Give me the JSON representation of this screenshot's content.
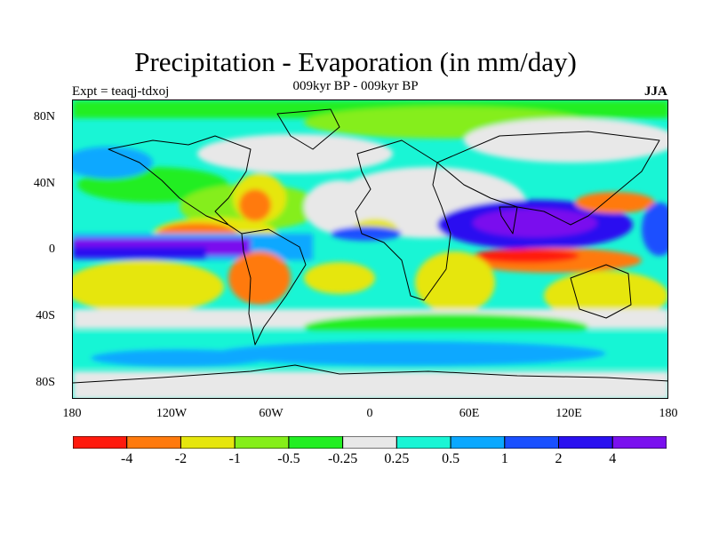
{
  "map": {
    "title": "Precipitation - Evaporation (in mm/day)",
    "subtitle": "009kyr BP - 009kyr BP",
    "experiment": "Expt = teaqj-tdxoj",
    "season": "JJA",
    "lat_ticks": [
      "80N",
      "40N",
      "0",
      "40S",
      "80S"
    ],
    "lon_ticks": [
      "180",
      "120W",
      "60W",
      "0",
      "60E",
      "120E",
      "180"
    ],
    "colorbar": {
      "colors": [
        "#ff1a0d",
        "#ff7a0d",
        "#e6e60d",
        "#85ee1a",
        "#22ee22",
        "#e8e8e8",
        "#19f5d5",
        "#0aa8ff",
        "#1a50ff",
        "#2a10f0",
        "#7a10ee"
      ],
      "labels": [
        "-4",
        "-2",
        "-1",
        "-0.5",
        "-0.25",
        "0.25",
        "0.5",
        "1",
        "2",
        "4"
      ]
    }
  }
}
